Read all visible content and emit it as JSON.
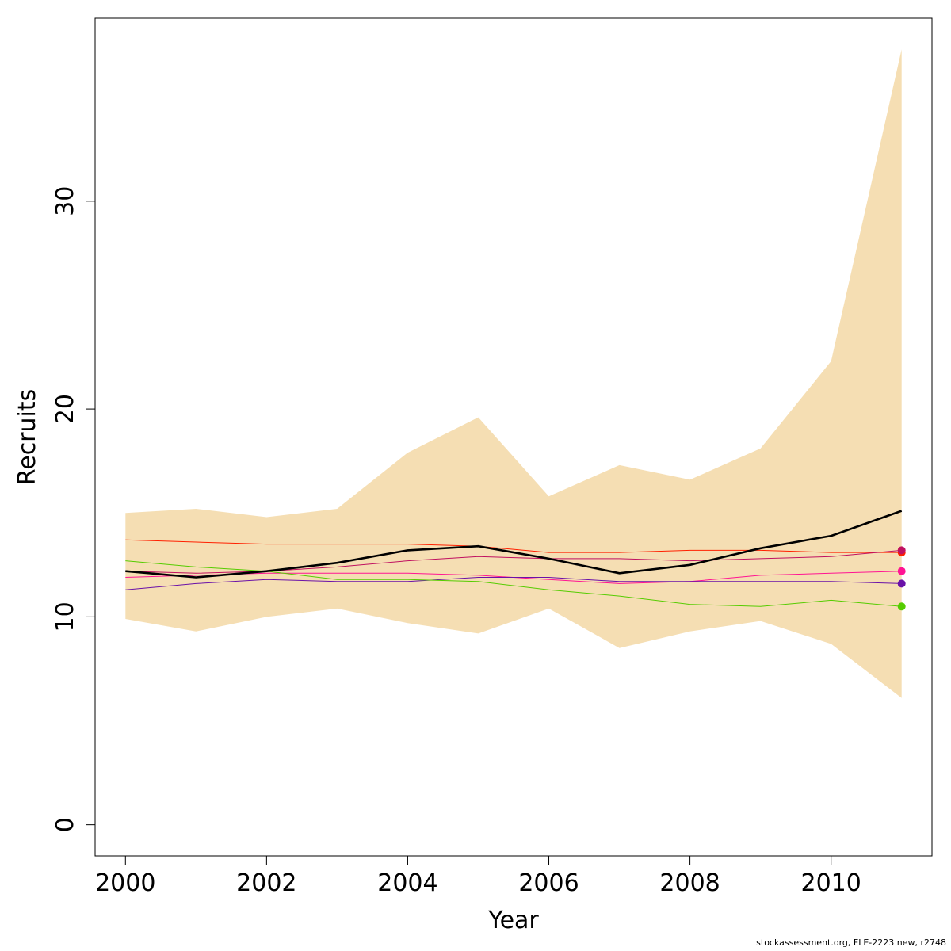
{
  "chart_data": {
    "type": "line",
    "xlabel": "Year",
    "ylabel": "Recruits",
    "xlim": [
      1999.57,
      2011.43
    ],
    "ylim": [
      -1.5,
      38.8
    ],
    "x_ticks": [
      2000,
      2002,
      2004,
      2006,
      2008,
      2010
    ],
    "y_ticks": [
      0,
      10,
      20,
      30
    ],
    "grid": false,
    "x": [
      2000,
      2001,
      2002,
      2003,
      2004,
      2005,
      2006,
      2007,
      2008,
      2009,
      2010,
      2011
    ],
    "band": {
      "color": "#f5deb3",
      "lower": [
        9.9,
        9.3,
        10.0,
        10.4,
        9.7,
        9.2,
        10.4,
        8.5,
        9.3,
        9.8,
        8.7,
        6.1
      ],
      "upper": [
        15.0,
        15.2,
        14.8,
        15.2,
        17.9,
        19.6,
        15.8,
        17.3,
        16.6,
        18.1,
        22.3,
        37.3
      ]
    },
    "series": [
      {
        "color": "#000000",
        "width": 2.6,
        "end_point": false,
        "values": [
          12.2,
          11.9,
          12.2,
          12.6,
          13.2,
          13.4,
          12.8,
          12.1,
          12.5,
          13.3,
          13.9,
          15.1
        ]
      },
      {
        "color": "#ff2000",
        "width": 1,
        "end_point": true,
        "values": [
          13.7,
          13.6,
          13.5,
          13.5,
          13.5,
          13.4,
          13.1,
          13.1,
          13.2,
          13.2,
          13.1,
          13.1
        ]
      },
      {
        "color": "#c01060",
        "width": 1,
        "end_point": true,
        "values": [
          12.2,
          12.1,
          12.2,
          12.4,
          12.7,
          12.9,
          12.8,
          12.8,
          12.7,
          12.8,
          12.9,
          13.2
        ]
      },
      {
        "color": "#ff1493",
        "width": 1,
        "end_point": true,
        "values": [
          11.9,
          12.0,
          12.1,
          12.1,
          12.1,
          12.0,
          11.8,
          11.6,
          11.7,
          12.0,
          12.1,
          12.2
        ]
      },
      {
        "color": "#6a11a8",
        "width": 1,
        "end_point": true,
        "values": [
          11.3,
          11.6,
          11.8,
          11.7,
          11.7,
          11.9,
          11.9,
          11.7,
          11.7,
          11.7,
          11.7,
          11.6
        ]
      },
      {
        "color": "#55cc00",
        "width": 1,
        "end_point": true,
        "values": [
          12.7,
          12.4,
          12.2,
          11.8,
          11.8,
          11.7,
          11.3,
          11.0,
          10.6,
          10.5,
          10.8,
          10.5
        ]
      }
    ]
  },
  "footnote": "stockassessment.org, FLE-2223 new, r2748"
}
